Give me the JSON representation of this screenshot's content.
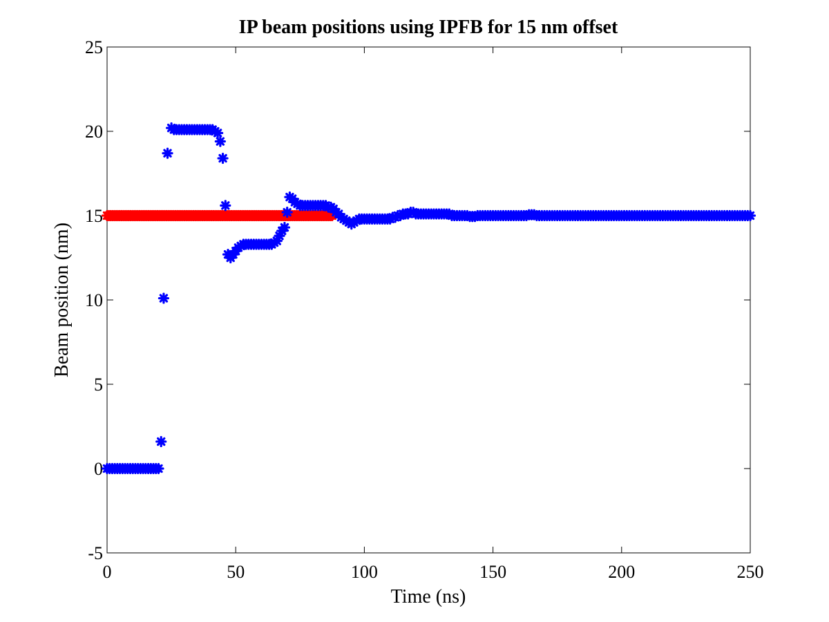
{
  "chart_data": {
    "type": "scatter",
    "title": "IP beam positions using IPFB for 15 nm offset",
    "xlabel": "Time (ns)",
    "ylabel": "Beam position (nm)",
    "xlim": [
      0,
      250
    ],
    "ylim": [
      -5,
      25
    ],
    "xticks": [
      0,
      50,
      100,
      150,
      200,
      250
    ],
    "yticks": [
      -5,
      0,
      5,
      10,
      15,
      20,
      25
    ],
    "xtick_labels": [
      "0",
      "50",
      "100",
      "150",
      "200",
      "250"
    ],
    "ytick_labels": [
      "-5",
      "0",
      "5",
      "10",
      "15",
      "20",
      "25"
    ],
    "grid": false,
    "marker": "asterisk",
    "series": [
      {
        "color": "#ff0000",
        "x_start": 0,
        "x_end": 88,
        "x_step": 0.7,
        "y_constant": 15
      },
      {
        "color": "#0000ff",
        "points": [
          [
            0,
            0
          ],
          [
            1,
            0
          ],
          [
            2,
            0
          ],
          [
            3,
            0
          ],
          [
            4,
            0
          ],
          [
            5,
            0
          ],
          [
            6,
            0
          ],
          [
            7,
            0
          ],
          [
            8,
            0
          ],
          [
            9,
            0
          ],
          [
            10,
            0
          ],
          [
            11,
            0
          ],
          [
            12,
            0
          ],
          [
            13,
            0
          ],
          [
            14,
            0
          ],
          [
            15,
            0
          ],
          [
            16,
            0
          ],
          [
            17,
            0
          ],
          [
            18,
            0
          ],
          [
            19,
            0
          ],
          [
            20,
            0
          ],
          [
            21,
            1.6
          ],
          [
            22,
            10.1
          ],
          [
            23.5,
            18.7
          ],
          [
            25,
            20.2
          ],
          [
            26,
            20.1
          ],
          [
            27,
            20.1
          ],
          [
            28,
            20.1
          ],
          [
            29,
            20.1
          ],
          [
            30,
            20.1
          ],
          [
            31,
            20.1
          ],
          [
            32,
            20.1
          ],
          [
            33,
            20.1
          ],
          [
            34,
            20.1
          ],
          [
            35,
            20.1
          ],
          [
            36,
            20.1
          ],
          [
            37,
            20.1
          ],
          [
            38,
            20.1
          ],
          [
            39,
            20.1
          ],
          [
            40,
            20.1
          ],
          [
            41,
            20.1
          ],
          [
            42,
            20.0
          ],
          [
            43,
            19.9
          ],
          [
            44,
            19.4
          ],
          [
            45,
            18.4
          ],
          [
            46,
            15.6
          ],
          [
            47,
            12.7
          ],
          [
            48,
            12.5
          ],
          [
            49,
            12.7
          ],
          [
            50,
            12.9
          ],
          [
            51,
            13.1
          ],
          [
            52,
            13.2
          ],
          [
            53,
            13.3
          ],
          [
            54,
            13.3
          ],
          [
            55,
            13.3
          ],
          [
            56,
            13.3
          ],
          [
            57,
            13.3
          ],
          [
            58,
            13.3
          ],
          [
            59,
            13.3
          ],
          [
            60,
            13.3
          ],
          [
            61,
            13.3
          ],
          [
            62,
            13.3
          ],
          [
            63,
            13.3
          ],
          [
            64,
            13.3
          ],
          [
            65,
            13.4
          ],
          [
            66,
            13.5
          ],
          [
            67,
            13.8
          ],
          [
            68,
            14.1
          ],
          [
            69,
            14.3
          ],
          [
            70,
            15.2
          ],
          [
            71,
            16.1
          ],
          [
            72,
            16.0
          ],
          [
            73,
            15.8
          ],
          [
            74,
            15.7
          ],
          [
            75,
            15.6
          ],
          [
            76,
            15.6
          ],
          [
            77,
            15.6
          ],
          [
            78,
            15.6
          ],
          [
            79,
            15.6
          ],
          [
            80,
            15.6
          ],
          [
            81,
            15.6
          ],
          [
            82,
            15.6
          ],
          [
            83,
            15.6
          ],
          [
            84,
            15.6
          ],
          [
            85,
            15.6
          ],
          [
            86,
            15.5
          ],
          [
            87,
            15.5
          ],
          [
            88,
            15.4
          ],
          [
            89,
            15.2
          ],
          [
            90,
            15.1
          ],
          [
            91,
            14.9
          ],
          [
            92,
            14.8
          ],
          [
            93,
            14.7
          ],
          [
            94,
            14.6
          ],
          [
            95,
            14.5
          ],
          [
            96,
            14.6
          ],
          [
            97,
            14.7
          ],
          [
            98,
            14.8
          ],
          [
            99,
            14.8
          ],
          [
            100,
            14.8
          ],
          [
            101,
            14.8
          ],
          [
            102,
            14.8
          ],
          [
            103,
            14.8
          ],
          [
            104,
            14.8
          ],
          [
            105,
            14.8
          ],
          [
            106,
            14.8
          ],
          [
            107,
            14.8
          ],
          [
            108,
            14.8
          ],
          [
            109,
            14.8
          ],
          [
            110,
            14.8
          ],
          [
            111,
            14.9
          ],
          [
            112,
            14.9
          ],
          [
            113,
            15.0
          ],
          [
            114,
            15.0
          ],
          [
            115,
            15.1
          ],
          [
            116,
            15.1
          ],
          [
            117,
            15.1
          ],
          [
            118,
            15.2
          ],
          [
            119,
            15.2
          ],
          [
            120,
            15.1
          ],
          [
            121,
            15.1
          ],
          [
            122,
            15.1
          ],
          [
            123,
            15.1
          ],
          [
            124,
            15.1
          ],
          [
            125,
            15.1
          ],
          [
            126,
            15.1
          ],
          [
            127,
            15.1
          ],
          [
            128,
            15.1
          ],
          [
            129,
            15.1
          ],
          [
            130,
            15.1
          ],
          [
            131,
            15.1
          ],
          [
            132,
            15.1
          ],
          [
            133,
            15.1
          ],
          [
            134,
            15.0
          ],
          [
            135,
            15.0
          ],
          [
            136,
            15.0
          ],
          [
            137,
            15.0
          ],
          [
            138,
            15.0
          ],
          [
            139,
            15.0
          ],
          [
            140,
            15.0
          ],
          [
            141,
            14.95
          ],
          [
            142,
            14.95
          ],
          [
            143,
            14.95
          ],
          [
            144,
            15.0
          ],
          [
            145,
            15.0
          ],
          [
            146,
            15.0
          ],
          [
            147,
            15.0
          ],
          [
            148,
            15.0
          ],
          [
            149,
            15.0
          ],
          [
            150,
            15.0
          ],
          [
            151,
            15.0
          ],
          [
            152,
            15.0
          ],
          [
            153,
            15.0
          ],
          [
            154,
            15.0
          ],
          [
            155,
            15.0
          ],
          [
            156,
            15.0
          ],
          [
            157,
            15.0
          ],
          [
            158,
            15.0
          ],
          [
            159,
            15.0
          ],
          [
            160,
            15.0
          ],
          [
            161,
            15.0
          ],
          [
            162,
            15.0
          ],
          [
            163,
            15.0
          ],
          [
            164,
            15.05
          ],
          [
            165,
            15.05
          ],
          [
            166,
            15.05
          ],
          [
            167,
            15.0
          ],
          [
            168,
            15.0
          ],
          [
            169,
            15.0
          ],
          [
            170,
            15.0
          ],
          [
            171,
            15.0
          ],
          [
            172,
            15.0
          ],
          [
            173,
            15.0
          ],
          [
            174,
            15.0
          ],
          [
            175,
            15.0
          ],
          [
            176,
            15.0
          ],
          [
            177,
            15.0
          ],
          [
            178,
            15.0
          ],
          [
            179,
            15.0
          ],
          [
            180,
            15.0
          ],
          [
            181,
            15.0
          ],
          [
            182,
            15.0
          ],
          [
            183,
            15.0
          ],
          [
            184,
            15.0
          ],
          [
            185,
            15.0
          ],
          [
            186,
            15.0
          ],
          [
            187,
            15.0
          ],
          [
            188,
            15.0
          ],
          [
            189,
            15.0
          ],
          [
            190,
            15.0
          ],
          [
            191,
            15.0
          ],
          [
            192,
            15.0
          ],
          [
            193,
            15.0
          ],
          [
            194,
            15.0
          ],
          [
            195,
            15.0
          ],
          [
            196,
            15.0
          ],
          [
            197,
            15.0
          ],
          [
            198,
            15.0
          ],
          [
            199,
            15.0
          ],
          [
            200,
            15.0
          ],
          [
            201,
            15.0
          ],
          [
            202,
            15.0
          ],
          [
            203,
            15.0
          ],
          [
            204,
            15.0
          ],
          [
            205,
            15.0
          ],
          [
            206,
            15.0
          ],
          [
            207,
            15.0
          ],
          [
            208,
            15.0
          ],
          [
            209,
            15.0
          ],
          [
            210,
            15.0
          ],
          [
            211,
            15.0
          ],
          [
            212,
            15.0
          ],
          [
            213,
            15.0
          ],
          [
            214,
            15.0
          ],
          [
            215,
            15.0
          ],
          [
            216,
            15.0
          ],
          [
            217,
            15.0
          ],
          [
            218,
            15.0
          ],
          [
            219,
            15.0
          ],
          [
            220,
            15.0
          ],
          [
            221,
            15.0
          ],
          [
            222,
            15.0
          ],
          [
            223,
            15.0
          ],
          [
            224,
            15.0
          ],
          [
            225,
            15.0
          ],
          [
            226,
            15.0
          ],
          [
            227,
            15.0
          ],
          [
            228,
            15.0
          ],
          [
            229,
            15.0
          ],
          [
            230,
            15.0
          ],
          [
            231,
            15.0
          ],
          [
            232,
            15.0
          ],
          [
            233,
            15.0
          ],
          [
            234,
            15.0
          ],
          [
            235,
            15.0
          ],
          [
            236,
            15.0
          ],
          [
            237,
            15.0
          ],
          [
            238,
            15.0
          ],
          [
            239,
            15.0
          ],
          [
            240,
            15.0
          ],
          [
            241,
            15.0
          ],
          [
            242,
            15.0
          ],
          [
            243,
            15.0
          ],
          [
            244,
            15.0
          ],
          [
            245,
            15.0
          ],
          [
            246,
            15.0
          ],
          [
            247,
            15.0
          ],
          [
            248,
            15.0
          ],
          [
            249,
            15.0
          ],
          [
            250,
            15.0
          ]
        ]
      }
    ]
  }
}
